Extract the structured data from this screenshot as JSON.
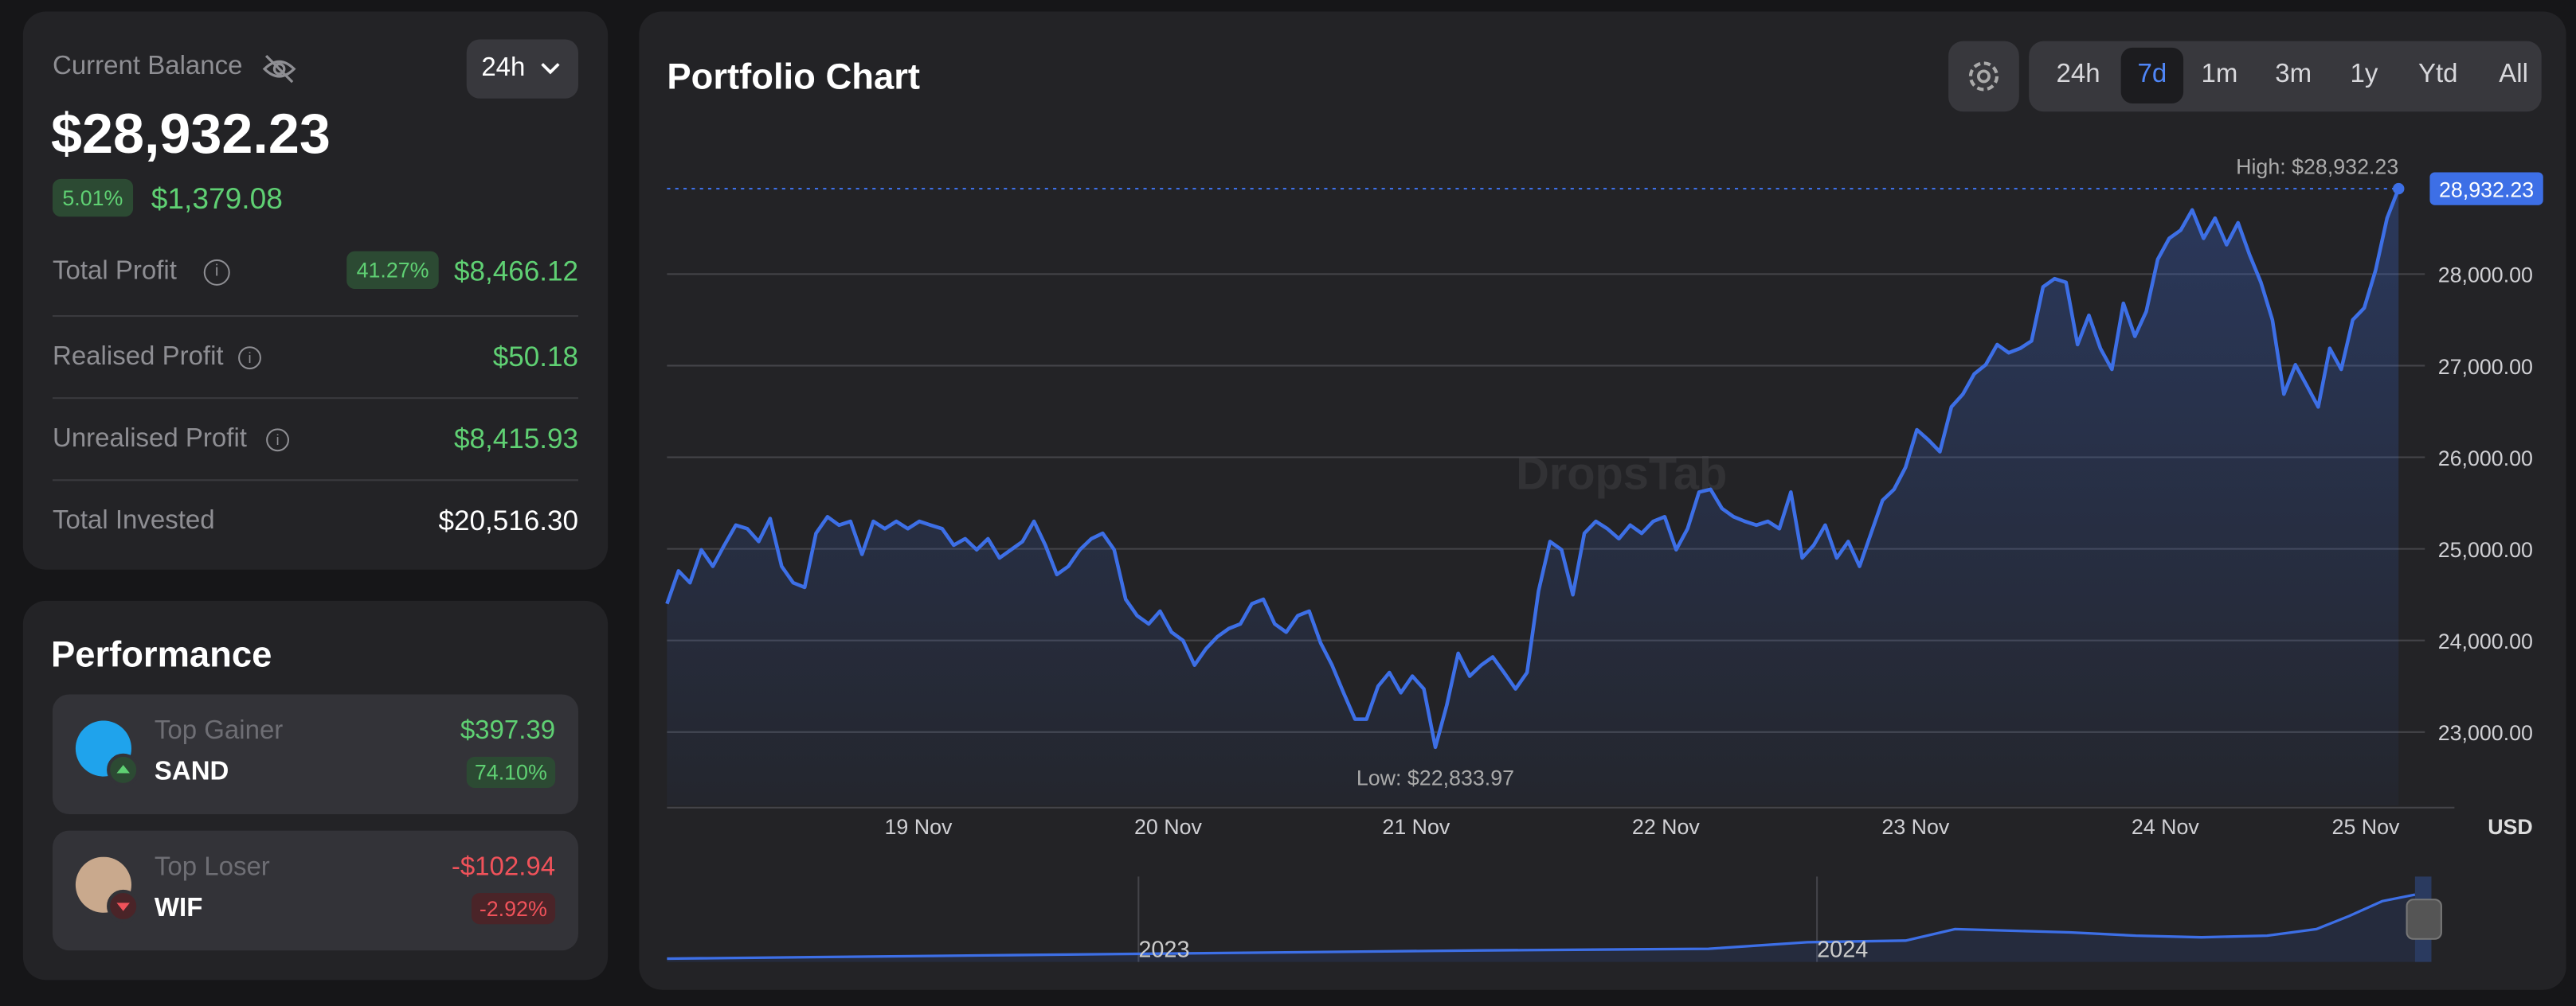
{
  "balance": {
    "label": "Current Balance",
    "range": "24h",
    "amount": "$28,932.23",
    "change_pct": "5.01%",
    "change": "$1,379.08",
    "rows": [
      {
        "label": "Total Profit",
        "badge": "41.27%",
        "value": "$8,466.12"
      },
      {
        "label": "Realised Profit",
        "value": "$50.18"
      },
      {
        "label": "Unrealised Profit",
        "value": "$8,415.93"
      },
      {
        "label": "Total Invested",
        "value": "$20,516.30"
      }
    ]
  },
  "performance": {
    "title": "Performance",
    "items": [
      {
        "role": "Top Gainer",
        "symbol": "SAND",
        "value": "$397.39",
        "pct": "74.10%",
        "trend": "up"
      },
      {
        "role": "Top Loser",
        "symbol": "WIF",
        "value": "-$102.94",
        "pct": "-2.92%",
        "trend": "down"
      }
    ]
  },
  "toolbar": {
    "ranges": [
      "24h",
      "7d",
      "1m",
      "3m",
      "1y",
      "Ytd",
      "All"
    ],
    "active": "7d"
  },
  "chart_data": {
    "type": "line",
    "title": "Portfolio Chart",
    "x_labels": [
      "19 Nov",
      "20 Nov",
      "21 Nov",
      "22 Nov",
      "23 Nov",
      "24 Nov",
      "25 Nov"
    ],
    "values": [
      24400,
      24760,
      24630,
      24990,
      24810,
      25040,
      25260,
      25220,
      25080,
      25330,
      24810,
      24630,
      24580,
      25170,
      25350,
      25260,
      25300,
      24940,
      25300,
      25220,
      25300,
      25220,
      25300,
      25260,
      25220,
      25040,
      25110,
      24990,
      25110,
      24900,
      24990,
      25080,
      25300,
      25040,
      24720,
      24810,
      24990,
      25110,
      25170,
      24990,
      24450,
      24270,
      24180,
      24320,
      24090,
      24000,
      23730,
      23910,
      24040,
      24130,
      24180,
      24400,
      24450,
      24180,
      24090,
      24270,
      24320,
      23970,
      23730,
      23430,
      23140,
      23140,
      23500,
      23650,
      23430,
      23610,
      23470,
      22833.97,
      23290,
      23860,
      23610,
      23730,
      23820,
      23650,
      23470,
      23650,
      24540,
      25080,
      24990,
      24500,
      25170,
      25300,
      25220,
      25110,
      25260,
      25170,
      25300,
      25350,
      24990,
      25220,
      25620,
      25650,
      25440,
      25350,
      25300,
      25260,
      25300,
      25220,
      25620,
      24900,
      25040,
      25260,
      24900,
      25080,
      24810,
      25170,
      25530,
      25650,
      25890,
      26300,
      26190,
      26060,
      26550,
      26690,
      26910,
      27010,
      27230,
      27140,
      27190,
      27270,
      27860,
      27950,
      27910,
      27230,
      27550,
      27190,
      26960,
      27680,
      27320,
      27590,
      28160,
      28390,
      28480,
      28700,
      28390,
      28610,
      28320,
      28560,
      28210,
      27910,
      27500,
      26690,
      27010,
      26780,
      26550,
      27190,
      26960,
      27500,
      27630,
      28040,
      28610,
      28932.23
    ],
    "color": "#3d6fe6",
    "ylim": [
      22200,
      29200
    ],
    "yticks": [
      {
        "value": 23000,
        "label": "23,000.00"
      },
      {
        "value": 24000,
        "label": "24,000.00"
      },
      {
        "value": 25000,
        "label": "25,000.00"
      },
      {
        "value": 26000,
        "label": "26,000.00"
      },
      {
        "value": 27000,
        "label": "27,000.00"
      },
      {
        "value": 28000,
        "label": "28,000.00"
      }
    ],
    "grid": true,
    "currency": "USD",
    "high_label": "High: $28,932.23",
    "low_label": "Low: $22,833.97",
    "last_label": "28,932.23",
    "watermark": "DropsTab",
    "navigator_labels": [
      "2023",
      "2024"
    ]
  }
}
